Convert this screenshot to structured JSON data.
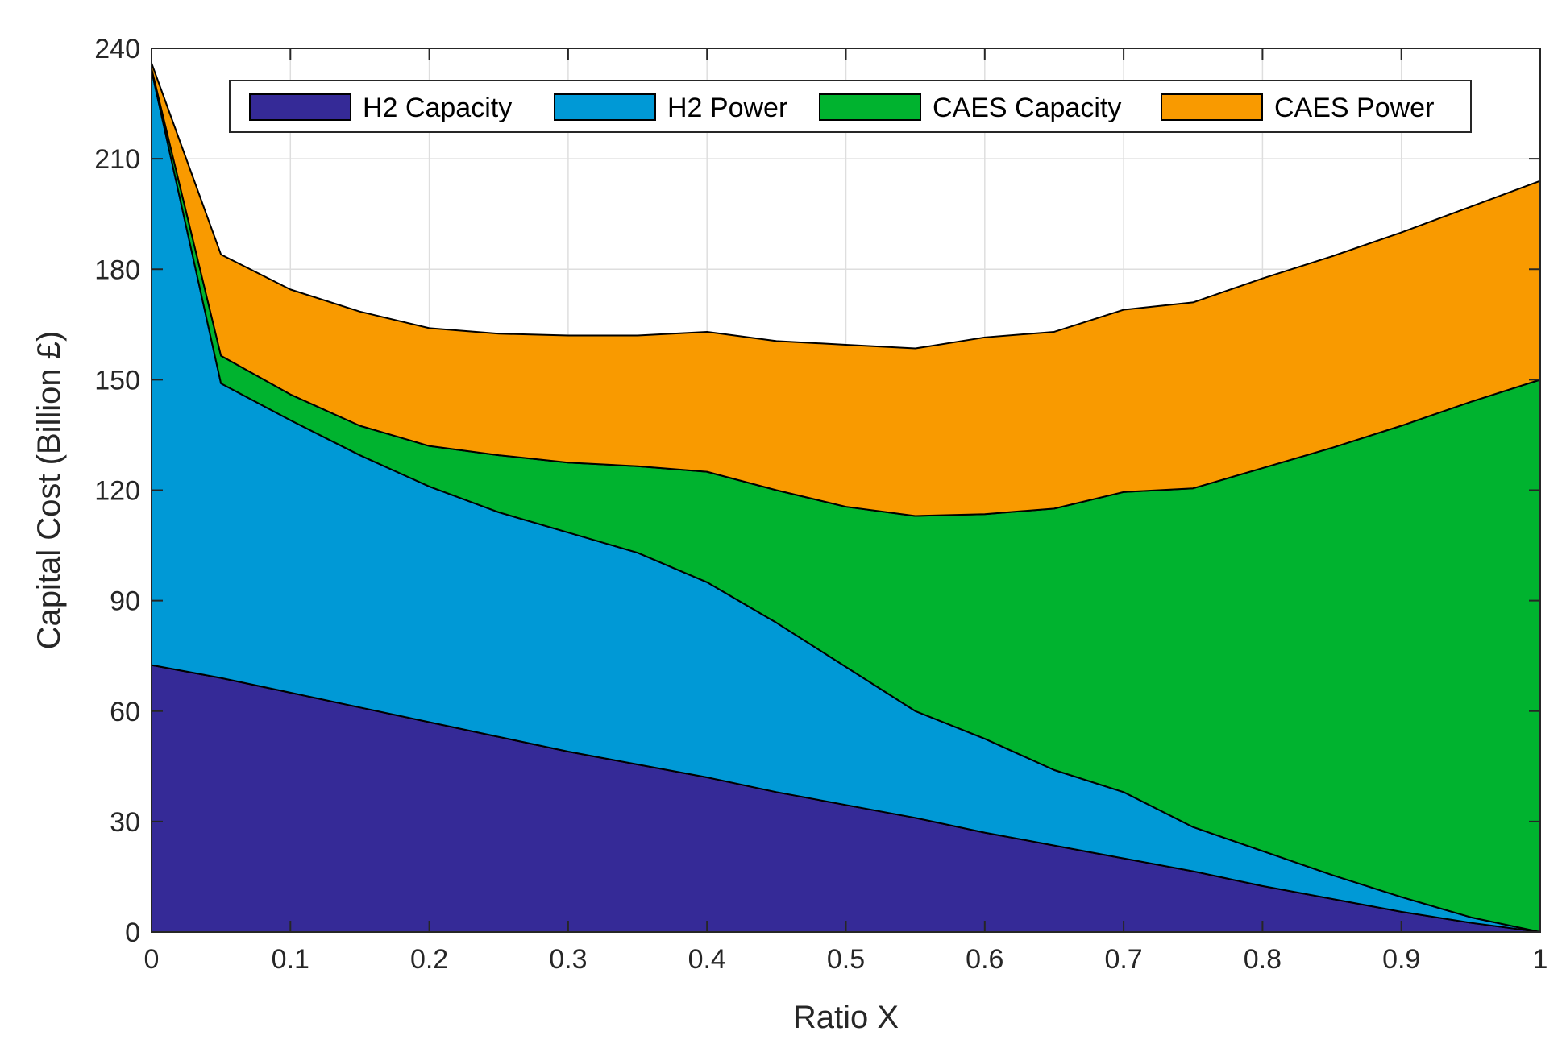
{
  "chart_data": {
    "type": "area",
    "stacked": true,
    "title": "",
    "xlabel": "Ratio X",
    "ylabel": "Capital Cost (Billion £)",
    "xlim": [
      0,
      1
    ],
    "ylim": [
      0,
      240
    ],
    "xticks": [
      0,
      0.1,
      0.2,
      0.3,
      0.4,
      0.5,
      0.6,
      0.7,
      0.8,
      0.9,
      1
    ],
    "xtick_labels": [
      "0",
      "0.1",
      "0.2",
      "0.3",
      "0.4",
      "0.5",
      "0.6",
      "0.7",
      "0.8",
      "0.9",
      "1"
    ],
    "yticks": [
      0,
      30,
      60,
      90,
      120,
      150,
      180,
      210,
      240
    ],
    "ytick_labels": [
      "0",
      "30",
      "60",
      "90",
      "120",
      "150",
      "180",
      "210",
      "240"
    ],
    "grid": true,
    "legend_position": "top",
    "x": [
      0,
      0.05,
      0.1,
      0.15,
      0.2,
      0.25,
      0.3,
      0.35,
      0.4,
      0.45,
      0.5,
      0.55,
      0.6,
      0.65,
      0.7,
      0.75,
      0.8,
      0.85,
      0.9,
      0.95,
      1
    ],
    "series": [
      {
        "name": "H2 Capacity",
        "color": "#352a97",
        "values": [
          72.5,
          69,
          65,
          61,
          57,
          53,
          49,
          45.5,
          42,
          38,
          34.5,
          31,
          27,
          23.5,
          20,
          16.5,
          12.5,
          9,
          5.5,
          2.5,
          0
        ]
      },
      {
        "name": "H2 Power",
        "color": "#0099d6",
        "values": [
          161.5,
          80,
          74,
          68.5,
          64,
          61,
          59.5,
          57.5,
          53,
          46,
          37.5,
          29,
          25.5,
          20.5,
          18,
          12,
          9.5,
          6.5,
          4,
          1.5,
          0
        ]
      },
      {
        "name": "CAES Capacity",
        "color": "#00b32f",
        "values": [
          0.5,
          7.5,
          7,
          8,
          11,
          15.5,
          19,
          23.5,
          30,
          36,
          43.5,
          53,
          61,
          71,
          81.5,
          92,
          104,
          116,
          128,
          140,
          150
        ]
      },
      {
        "name": "CAES Power",
        "color": "#f99a00",
        "values": [
          1.5,
          27.5,
          28.5,
          31,
          32,
          33,
          34.5,
          35.5,
          38,
          40.5,
          44,
          45.5,
          48,
          48,
          49.5,
          50.5,
          51.5,
          52,
          52.5,
          53,
          54
        ]
      }
    ]
  }
}
